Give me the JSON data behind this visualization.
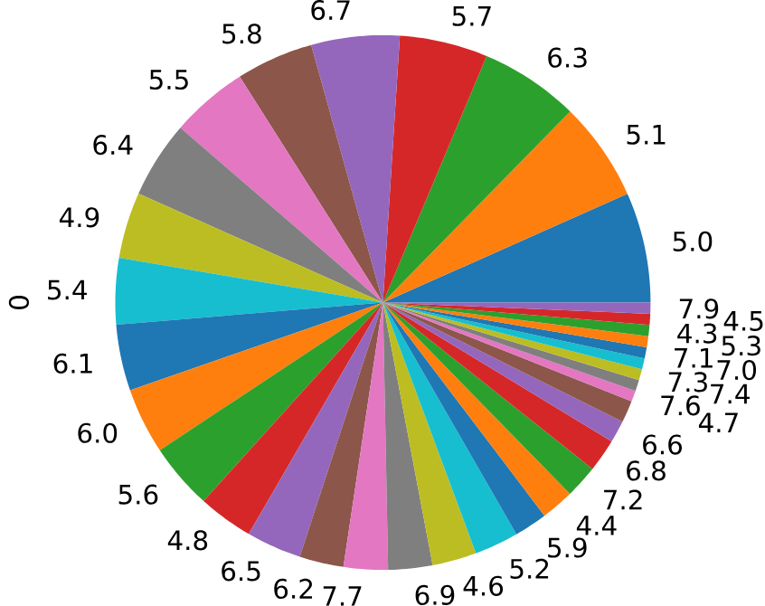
{
  "chart_data": {
    "type": "pie",
    "ylabel": "0",
    "categories": [
      "5.0",
      "5.1",
      "6.3",
      "5.7",
      "6.7",
      "5.8",
      "5.5",
      "6.4",
      "4.9",
      "5.4",
      "6.1",
      "6.0",
      "5.6",
      "4.8",
      "6.5",
      "6.2",
      "7.7",
      "6.9",
      "4.6",
      "5.2",
      "5.9",
      "4.4",
      "7.2",
      "6.8",
      "6.6",
      "4.7",
      "7.6",
      "7.4",
      "7.3",
      "7.0",
      "7.1",
      "5.3",
      "4.3",
      "4.5",
      "7.9"
    ],
    "values": [
      6.67,
      6,
      6,
      5.33,
      5.33,
      4.67,
      4.67,
      4.67,
      4,
      4,
      4,
      4,
      4,
      3.33,
      3.33,
      2.67,
      2.67,
      2.67,
      2.67,
      2.67,
      2,
      2,
      2,
      2,
      1.33,
      1.33,
      0.67,
      0.67,
      0.67,
      0.67,
      0.67,
      0.67,
      0.67,
      0.67,
      0.67
    ],
    "colors": [
      "#1f77b4",
      "#ff7f0e",
      "#2ca02c",
      "#d62728",
      "#9467bd",
      "#8c564b",
      "#e377c2",
      "#7f7f7f",
      "#bcbd22",
      "#17becf",
      "#1f77b4",
      "#ff7f0e",
      "#2ca02c",
      "#d62728",
      "#9467bd",
      "#8c564b",
      "#e377c2",
      "#7f7f7f",
      "#bcbd22",
      "#17becf",
      "#1f77b4",
      "#ff7f0e",
      "#2ca02c",
      "#d62728",
      "#9467bd",
      "#8c564b",
      "#e377c2",
      "#7f7f7f",
      "#bcbd22",
      "#17becf",
      "#1f77b4",
      "#ff7f0e",
      "#2ca02c",
      "#d62728",
      "#9467bd"
    ]
  }
}
